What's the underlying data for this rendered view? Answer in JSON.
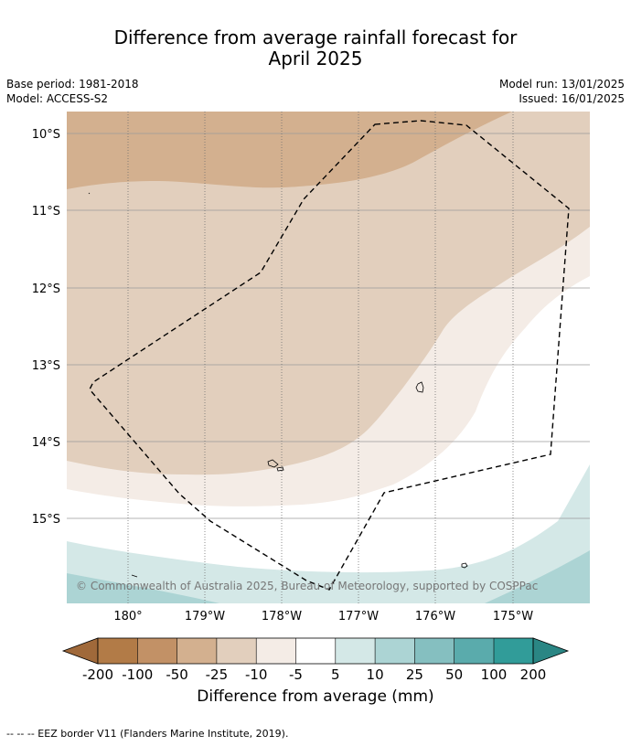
{
  "title_line1": "Difference from average rainfall forecast for",
  "title_line2": "April 2025",
  "base_period": "Base period: 1981-2018",
  "model": "Model: ACCESS-S2",
  "model_run": "Model run: 13/01/2025",
  "issued": "Issued: 16/01/2025",
  "copyright": "© Commonwealth of Australia 2025, Bureau of Meteorology, supported by COSPPac",
  "lat_labels": [
    "10°S",
    "11°S",
    "12°S",
    "13°S",
    "14°S",
    "15°S"
  ],
  "lon_labels": [
    "180°",
    "179°W",
    "178°W",
    "177°W",
    "176°W",
    "175°W"
  ],
  "colorbar": {
    "title": "Difference from average (mm)",
    "tick_labels": [
      "-200",
      "-100",
      "-50",
      "-25",
      "-10",
      "-5",
      "5",
      "10",
      "25",
      "50",
      "100",
      "200"
    ],
    "colors": [
      "#a0693a",
      "#b27b47",
      "#c29166",
      "#d3b08f",
      "#e2cfbd",
      "#f4ece6",
      "#ffffff",
      "#d4e8e7",
      "#acd4d4",
      "#85bfc0",
      "#5aabac",
      "#319c99",
      "#2a8684"
    ]
  },
  "footnote": "--  --  -- EEZ border V11 (Flanders Marine Institute, 2019)."
}
